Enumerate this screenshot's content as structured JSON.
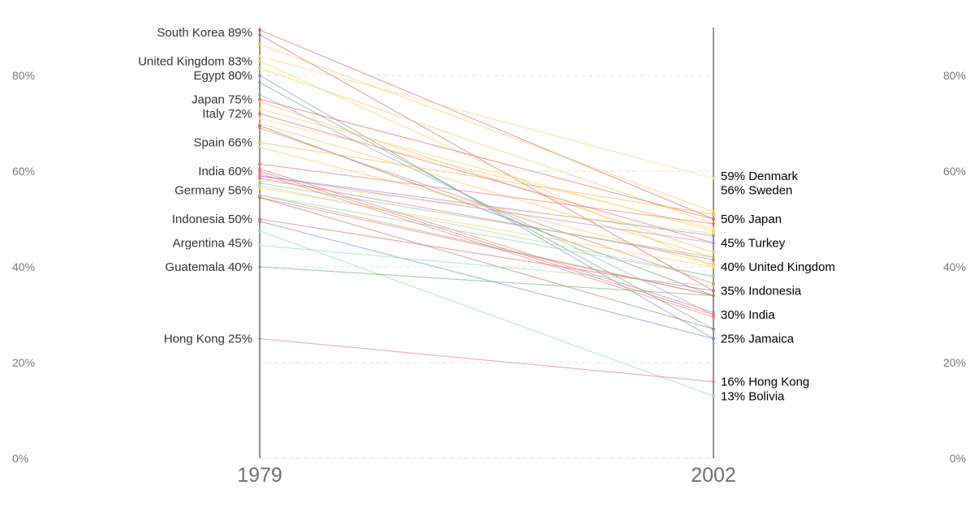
{
  "chart_data": {
    "type": "line",
    "x": [
      "1979",
      "2002"
    ],
    "ylim": [
      0,
      90
    ],
    "y_ticks": [
      "0%",
      "20%",
      "40%",
      "60%",
      "80%"
    ],
    "grid": true,
    "left_labels": [
      {
        "text": "South Korea 89%",
        "value": 89
      },
      {
        "text": "United Kingdom 83%",
        "value": 83
      },
      {
        "text": "Egypt 80%",
        "value": 80
      },
      {
        "text": "Japan 75%",
        "value": 75
      },
      {
        "text": "Italy 72%",
        "value": 72
      },
      {
        "text": "Spain 66%",
        "value": 66
      },
      {
        "text": "India 60%",
        "value": 60
      },
      {
        "text": "Germany 56%",
        "value": 56
      },
      {
        "text": "Indonesia 50%",
        "value": 50
      },
      {
        "text": "Argentina 45%",
        "value": 45
      },
      {
        "text": "Guatemala 40%",
        "value": 40
      },
      {
        "text": "Hong Kong 25%",
        "value": 25
      }
    ],
    "right_labels": [
      {
        "text": "59% Denmark",
        "value": 59
      },
      {
        "text": "56% Sweden",
        "value": 56
      },
      {
        "text": "50% Japan",
        "value": 50
      },
      {
        "text": "45% Turkey",
        "value": 45
      },
      {
        "text": "40% United Kingdom",
        "value": 40
      },
      {
        "text": "35% Indonesia",
        "value": 35
      },
      {
        "text": "30% India",
        "value": 30
      },
      {
        "text": "25% Jamaica",
        "value": 25
      },
      {
        "text": "16% Hong Kong",
        "value": 16
      },
      {
        "text": "13% Bolivia",
        "value": 13
      }
    ],
    "series": [
      {
        "values": [
          89.5,
          50
        ],
        "color": "#e05b6b"
      },
      {
        "values": [
          88.5,
          35
        ],
        "color": "#d55a6a"
      },
      {
        "values": [
          86.5,
          51.5
        ],
        "color": "#f5c84a"
      },
      {
        "values": [
          84,
          58.5
        ],
        "color": "#f9d56b"
      },
      {
        "values": [
          83,
          40
        ],
        "color": "#f7cf52"
      },
      {
        "values": [
          81.5,
          49
        ],
        "color": "#f4c84d"
      },
      {
        "values": [
          80,
          25
        ],
        "color": "#6f8fd0"
      },
      {
        "values": [
          78.5,
          27
        ],
        "color": "#6aa678"
      },
      {
        "values": [
          76,
          30
        ],
        "color": "#8aa2d8"
      },
      {
        "values": [
          75,
          50
        ],
        "color": "#e8604c"
      },
      {
        "values": [
          74.5,
          43
        ],
        "color": "#f2c24e"
      },
      {
        "values": [
          73,
          47.5
        ],
        "color": "#f6cd55"
      },
      {
        "values": [
          72,
          45
        ],
        "color": "#ec5d6e"
      },
      {
        "values": [
          71,
          48
        ],
        "color": "#f7d26a"
      },
      {
        "values": [
          70,
          42
        ],
        "color": "#f3c24f"
      },
      {
        "values": [
          69.5,
          34
        ],
        "color": "#7f7f74"
      },
      {
        "values": [
          69,
          36.5
        ],
        "color": "#ea7a58"
      },
      {
        "values": [
          66,
          51
        ],
        "color": "#f0b44b"
      },
      {
        "values": [
          65,
          40.5
        ],
        "color": "#f5c654"
      },
      {
        "values": [
          61.5,
          49
        ],
        "color": "#ea6a70"
      },
      {
        "values": [
          60.5,
          30.5
        ],
        "color": "#e0787f"
      },
      {
        "values": [
          60,
          30
        ],
        "color": "#e56d7a"
      },
      {
        "values": [
          59.5,
          29.5
        ],
        "color": "#e37883"
      },
      {
        "values": [
          59,
          46.5
        ],
        "color": "#9c7fcd"
      },
      {
        "values": [
          59,
          45
        ],
        "color": "#c47ac7"
      },
      {
        "values": [
          58.5,
          41.5
        ],
        "color": "#e36a7c"
      },
      {
        "values": [
          58,
          47
        ],
        "color": "#f5cf5e"
      },
      {
        "values": [
          57.5,
          42
        ],
        "color": "#7fc59a"
      },
      {
        "values": [
          57,
          38
        ],
        "color": "#9fd8b0"
      },
      {
        "values": [
          56.5,
          40
        ],
        "color": "#f6cd58"
      },
      {
        "values": [
          55,
          34
        ],
        "color": "#b4a876"
      },
      {
        "values": [
          55,
          38
        ],
        "color": "#8fcda3"
      },
      {
        "values": [
          54.5,
          34
        ],
        "color": "#e2727a"
      },
      {
        "values": [
          54.5,
          27
        ],
        "color": "#a87a72"
      },
      {
        "values": [
          50,
          35
        ],
        "color": "#e35a6a"
      },
      {
        "values": [
          49.5,
          25
        ],
        "color": "#6b87cf"
      },
      {
        "values": [
          47.5,
          13
        ],
        "color": "#8fd3ae"
      },
      {
        "values": [
          44.5,
          36
        ],
        "color": "#9bd6ad"
      },
      {
        "values": [
          40,
          34
        ],
        "color": "#6fa870"
      },
      {
        "values": [
          25,
          16
        ],
        "color": "#e0707f"
      }
    ]
  }
}
